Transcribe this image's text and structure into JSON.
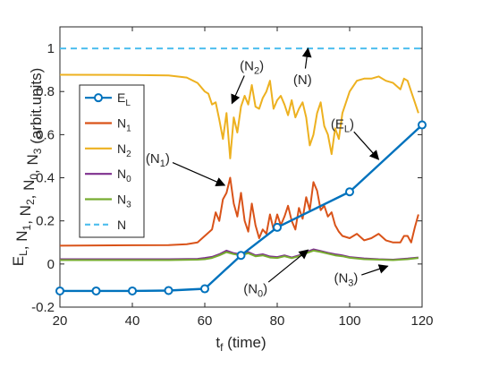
{
  "chart_data": {
    "type": "line",
    "xlabel": "t",
    "xlabel_sub": "f",
    "xlabel_rest": " (time)",
    "ylabel_parts": [
      {
        "t": "E",
        "s": "L"
      },
      {
        "t": ", N",
        "s": "1"
      },
      {
        "t": ", N",
        "s": "2"
      },
      {
        "t": ", N",
        "s": "0"
      },
      {
        "t": ", N",
        "s": "3"
      },
      {
        "t": " (arbit.units)",
        "s": ""
      }
    ],
    "xlim": [
      20,
      120
    ],
    "ylim": [
      -0.2,
      1.1
    ],
    "xticks": [
      20,
      40,
      60,
      80,
      100,
      120
    ],
    "xtick_labels": [
      "20",
      "40",
      "60",
      "80",
      "100",
      "120"
    ],
    "yticks": [
      -0.2,
      0,
      0.2,
      0.4,
      0.6,
      0.8,
      1
    ],
    "ytick_labels": [
      "-0.2",
      "0",
      "0.2",
      "0.4",
      "0.6",
      "0.8",
      "1"
    ],
    "grid": false,
    "legend_position": "center-left",
    "series": [
      {
        "key": "EL",
        "label": "E",
        "sub": "L",
        "color": "#0072BD",
        "style": "line-marker",
        "x": [
          20,
          30,
          40,
          50,
          60,
          70,
          80,
          100,
          120
        ],
        "y": [
          -0.125,
          -0.125,
          -0.125,
          -0.123,
          -0.115,
          0.04,
          0.17,
          0.335,
          0.645
        ]
      },
      {
        "key": "N1",
        "label": "N",
        "sub": "1",
        "color": "#D95319",
        "style": "line",
        "x": [
          20,
          40,
          50,
          55,
          58,
          60,
          62,
          63,
          64,
          65,
          66,
          67,
          68,
          69,
          70,
          71,
          72,
          73,
          74,
          75,
          76,
          77,
          78,
          79,
          80,
          81,
          82,
          83,
          84,
          85,
          86,
          87,
          88,
          89,
          90,
          91,
          92,
          93,
          94,
          95,
          96,
          97,
          98,
          100,
          102,
          104,
          106,
          108,
          110,
          112,
          114,
          115,
          116,
          117,
          118,
          119
        ],
        "y": [
          0.085,
          0.087,
          0.088,
          0.092,
          0.1,
          0.13,
          0.16,
          0.24,
          0.2,
          0.3,
          0.33,
          0.4,
          0.28,
          0.22,
          0.33,
          0.2,
          0.15,
          0.28,
          0.18,
          0.12,
          0.16,
          0.14,
          0.23,
          0.16,
          0.23,
          0.18,
          0.22,
          0.27,
          0.2,
          0.16,
          0.26,
          0.21,
          0.31,
          0.25,
          0.38,
          0.34,
          0.25,
          0.27,
          0.22,
          0.24,
          0.18,
          0.15,
          0.13,
          0.12,
          0.14,
          0.11,
          0.12,
          0.14,
          0.11,
          0.1,
          0.1,
          0.13,
          0.13,
          0.1,
          0.17,
          0.23
        ]
      },
      {
        "key": "N2",
        "label": "N",
        "sub": "2",
        "color": "#EDB120",
        "style": "line",
        "x": [
          20,
          40,
          50,
          55,
          58,
          60,
          61,
          62,
          63,
          64,
          65,
          66,
          67,
          68,
          69,
          70,
          71,
          72,
          73,
          74,
          75,
          76,
          77,
          78,
          79,
          80,
          81,
          82,
          83,
          84,
          85,
          86,
          87,
          88,
          89,
          90,
          91,
          92,
          93,
          94,
          95,
          96,
          97,
          98,
          100,
          102,
          104,
          106,
          108,
          110,
          112,
          114,
          115,
          116,
          117,
          118,
          119
        ],
        "y": [
          0.878,
          0.877,
          0.875,
          0.865,
          0.84,
          0.8,
          0.79,
          0.74,
          0.75,
          0.67,
          0.58,
          0.7,
          0.49,
          0.68,
          0.61,
          0.73,
          0.78,
          0.74,
          0.83,
          0.73,
          0.72,
          0.77,
          0.8,
          0.85,
          0.72,
          0.76,
          0.78,
          0.74,
          0.69,
          0.76,
          0.68,
          0.72,
          0.75,
          0.68,
          0.55,
          0.6,
          0.7,
          0.75,
          0.64,
          0.6,
          0.51,
          0.63,
          0.58,
          0.7,
          0.8,
          0.85,
          0.86,
          0.86,
          0.87,
          0.85,
          0.84,
          0.81,
          0.86,
          0.85,
          0.8,
          0.75,
          0.7
        ]
      },
      {
        "key": "N0",
        "label": "N",
        "sub": "0",
        "color": "#7E2F8E",
        "style": "line",
        "x": [
          20,
          40,
          50,
          58,
          60,
          62,
          64,
          66,
          68,
          70,
          72,
          74,
          76,
          78,
          80,
          82,
          84,
          86,
          88,
          90,
          92,
          94,
          96,
          98,
          100,
          104,
          108,
          112,
          116,
          119
        ],
        "y": [
          0.022,
          0.022,
          0.022,
          0.024,
          0.028,
          0.033,
          0.045,
          0.062,
          0.05,
          0.045,
          0.055,
          0.04,
          0.045,
          0.035,
          0.032,
          0.04,
          0.03,
          0.04,
          0.055,
          0.068,
          0.06,
          0.052,
          0.045,
          0.04,
          0.032,
          0.026,
          0.022,
          0.02,
          0.025,
          0.03
        ]
      },
      {
        "key": "N3",
        "label": "N",
        "sub": "3",
        "color": "#77AC30",
        "style": "line",
        "x": [
          20,
          40,
          50,
          58,
          60,
          62,
          64,
          66,
          68,
          70,
          72,
          74,
          76,
          78,
          80,
          82,
          84,
          86,
          88,
          90,
          92,
          94,
          96,
          98,
          100,
          104,
          108,
          112,
          116,
          119
        ],
        "y": [
          0.018,
          0.018,
          0.018,
          0.02,
          0.022,
          0.028,
          0.04,
          0.055,
          0.046,
          0.04,
          0.05,
          0.036,
          0.04,
          0.03,
          0.028,
          0.036,
          0.027,
          0.036,
          0.05,
          0.062,
          0.056,
          0.048,
          0.04,
          0.036,
          0.029,
          0.022,
          0.02,
          0.018,
          0.022,
          0.028
        ]
      },
      {
        "key": "N",
        "label": "N",
        "sub": "",
        "color": "#4DBEEE",
        "style": "dashed",
        "x": [
          20,
          120
        ],
        "y": [
          1,
          1
        ]
      }
    ],
    "annotations": [
      {
        "label": "(N",
        "sub": "2",
        "close": ")",
        "tx": 73,
        "ty": 0.92,
        "ax": 67.5,
        "ay": 0.745
      },
      {
        "label": "(N)",
        "sub": "",
        "close": "",
        "tx": 87,
        "ty": 0.855,
        "ax": 88.5,
        "ay": 1.0
      },
      {
        "label": "(E",
        "sub": "L",
        "close": ")",
        "tx": 98,
        "ty": 0.65,
        "ax": 108,
        "ay": 0.485
      },
      {
        "label": "(N",
        "sub": "1",
        "close": ")",
        "tx": 47,
        "ty": 0.49,
        "ax": 65.5,
        "ay": 0.365
      },
      {
        "label": "(N",
        "sub": "0",
        "close": ")",
        "tx": 74,
        "ty": -0.115,
        "ax": 88.5,
        "ay": 0.065
      },
      {
        "label": "(N",
        "sub": "3",
        "close": ")",
        "tx": 99,
        "ty": -0.065,
        "ax": 110.5,
        "ay": -0.01
      }
    ]
  }
}
